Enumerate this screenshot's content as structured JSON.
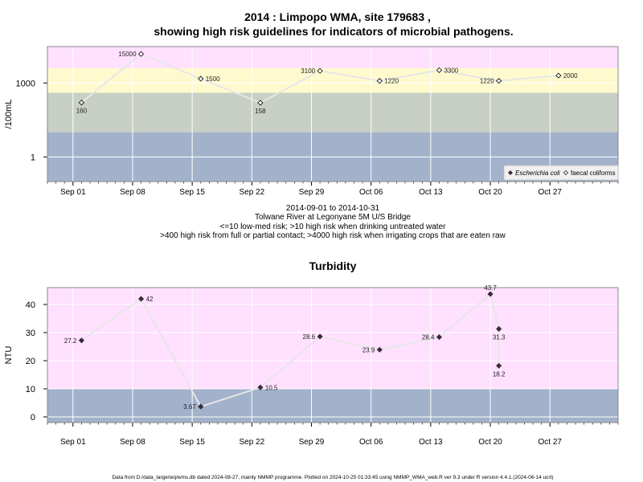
{
  "title_line1": "2014 : Limpopo WMA, site 179683 ,",
  "title_line2": "showing high risk guidelines for indicators of microbial pathogens.",
  "caption": [
    "2014-09-01 to 2014-10-31",
    "Tolwane River at Legonyane 5M U/S Bridge",
    "<=10 low-med risk; >10 high risk when drinking untreated water",
    ">400 high risk from full or partial contact; >4000 high risk when irrigating crops that are eaten raw"
  ],
  "footer": "Data from D:/data_large/wq/wms.db dated 2024-08-27, mainly NMMP programme. Plotted on 2024-10-25 01:33:45 using NMMP_WMA_web.R ver 9.3 under R version 4.4.1 (2024-06-14 ucrt)",
  "colors": {
    "pink": "#ffe0ff",
    "yellow": "#fffacd",
    "gray": "#c8cfc4",
    "blue": "#a2b2cb",
    "line": "#e6e6e6",
    "grid": "#ffffff",
    "point": "#3a2a3a"
  },
  "chart_data": [
    {
      "type": "line",
      "title": "",
      "xlabel": "",
      "ylabel": "/100mL",
      "yscale": "log",
      "ylim": [
        0.1,
        30000
      ],
      "xlim": [
        "2014-08-29",
        "2014-11-04"
      ],
      "x_ticks": [
        "Sep 01",
        "Sep 08",
        "Sep 15",
        "Sep 22",
        "Sep 29",
        "Oct 06",
        "Oct 13",
        "Oct 20",
        "Oct 27"
      ],
      "y_ticks": [
        {
          "value": 1,
          "label": "1"
        },
        {
          "value": 1000,
          "label": "1000"
        }
      ],
      "bands": [
        {
          "from": 0.1,
          "to": 10,
          "color": "blue"
        },
        {
          "from": 10,
          "to": 400,
          "color": "gray"
        },
        {
          "from": 400,
          "to": 4000,
          "color": "yellow"
        },
        {
          "from": 4000,
          "to": 30000,
          "color": "pink"
        }
      ],
      "legend_position": "bottom-right",
      "legend": [
        "Escherichia coli",
        "faecal coliforms"
      ],
      "series": [
        {
          "name": "faecal coliforms",
          "marker": "open-diamond",
          "points": [
            {
              "x": "2014-09-02",
              "y": 160,
              "label": "160"
            },
            {
              "x": "2014-09-09",
              "y": 15000,
              "label": "15000"
            },
            {
              "x": "2014-09-16",
              "y": 1500,
              "label": "1500"
            },
            {
              "x": "2014-09-23",
              "y": 158,
              "label": "158"
            },
            {
              "x": "2014-09-30",
              "y": 3100,
              "label": "3100"
            },
            {
              "x": "2014-10-07",
              "y": 1220,
              "label": "1220"
            },
            {
              "x": "2014-10-14",
              "y": 3300,
              "label": "3300"
            },
            {
              "x": "2014-10-21",
              "y": 1220,
              "label": "1220"
            },
            {
              "x": "2014-10-28",
              "y": 2000,
              "label": "2000"
            }
          ]
        }
      ]
    },
    {
      "type": "line",
      "title": "Turbidity",
      "xlabel": "",
      "ylabel": "NTU",
      "ylim": [
        -2,
        46
      ],
      "xlim": [
        "2014-08-29",
        "2014-11-04"
      ],
      "x_ticks": [
        "Sep 01",
        "Sep 08",
        "Sep 15",
        "Sep 22",
        "Sep 29",
        "Oct 06",
        "Oct 13",
        "Oct 20",
        "Oct 27"
      ],
      "y_ticks": [
        {
          "value": 0,
          "label": "0"
        },
        {
          "value": 10,
          "label": "10"
        },
        {
          "value": 20,
          "label": "20"
        },
        {
          "value": 30,
          "label": "30"
        },
        {
          "value": 40,
          "label": "40"
        }
      ],
      "bands": [
        {
          "from": -2,
          "to": 10,
          "color": "blue"
        },
        {
          "from": 10,
          "to": 46,
          "color": "pink"
        }
      ],
      "series": [
        {
          "marker": "filled-diamond",
          "points": [
            {
              "x": "2014-09-02",
              "y": 27.2,
              "label": "27.2"
            },
            {
              "x": "2014-09-09",
              "y": 42,
              "label": "42"
            },
            {
              "x": "2014-09-16",
              "y": 3.67,
              "label": "3.67"
            },
            {
              "x": "2014-09-23",
              "y": 10.5,
              "label": "10.5"
            },
            {
              "x": "2014-09-30",
              "y": 28.6,
              "label": "28.6"
            },
            {
              "x": "2014-10-07",
              "y": 23.9,
              "label": "23.9"
            },
            {
              "x": "2014-10-14",
              "y": 28.4,
              "label": "28.4"
            },
            {
              "x": "2014-10-20",
              "y": 43.7,
              "label": "43.7"
            },
            {
              "x": "2014-10-21",
              "y": 31.3,
              "label": "31.3"
            },
            {
              "x": "2014-10-21",
              "y": 18.2,
              "label": "18.2"
            }
          ]
        }
      ]
    }
  ]
}
